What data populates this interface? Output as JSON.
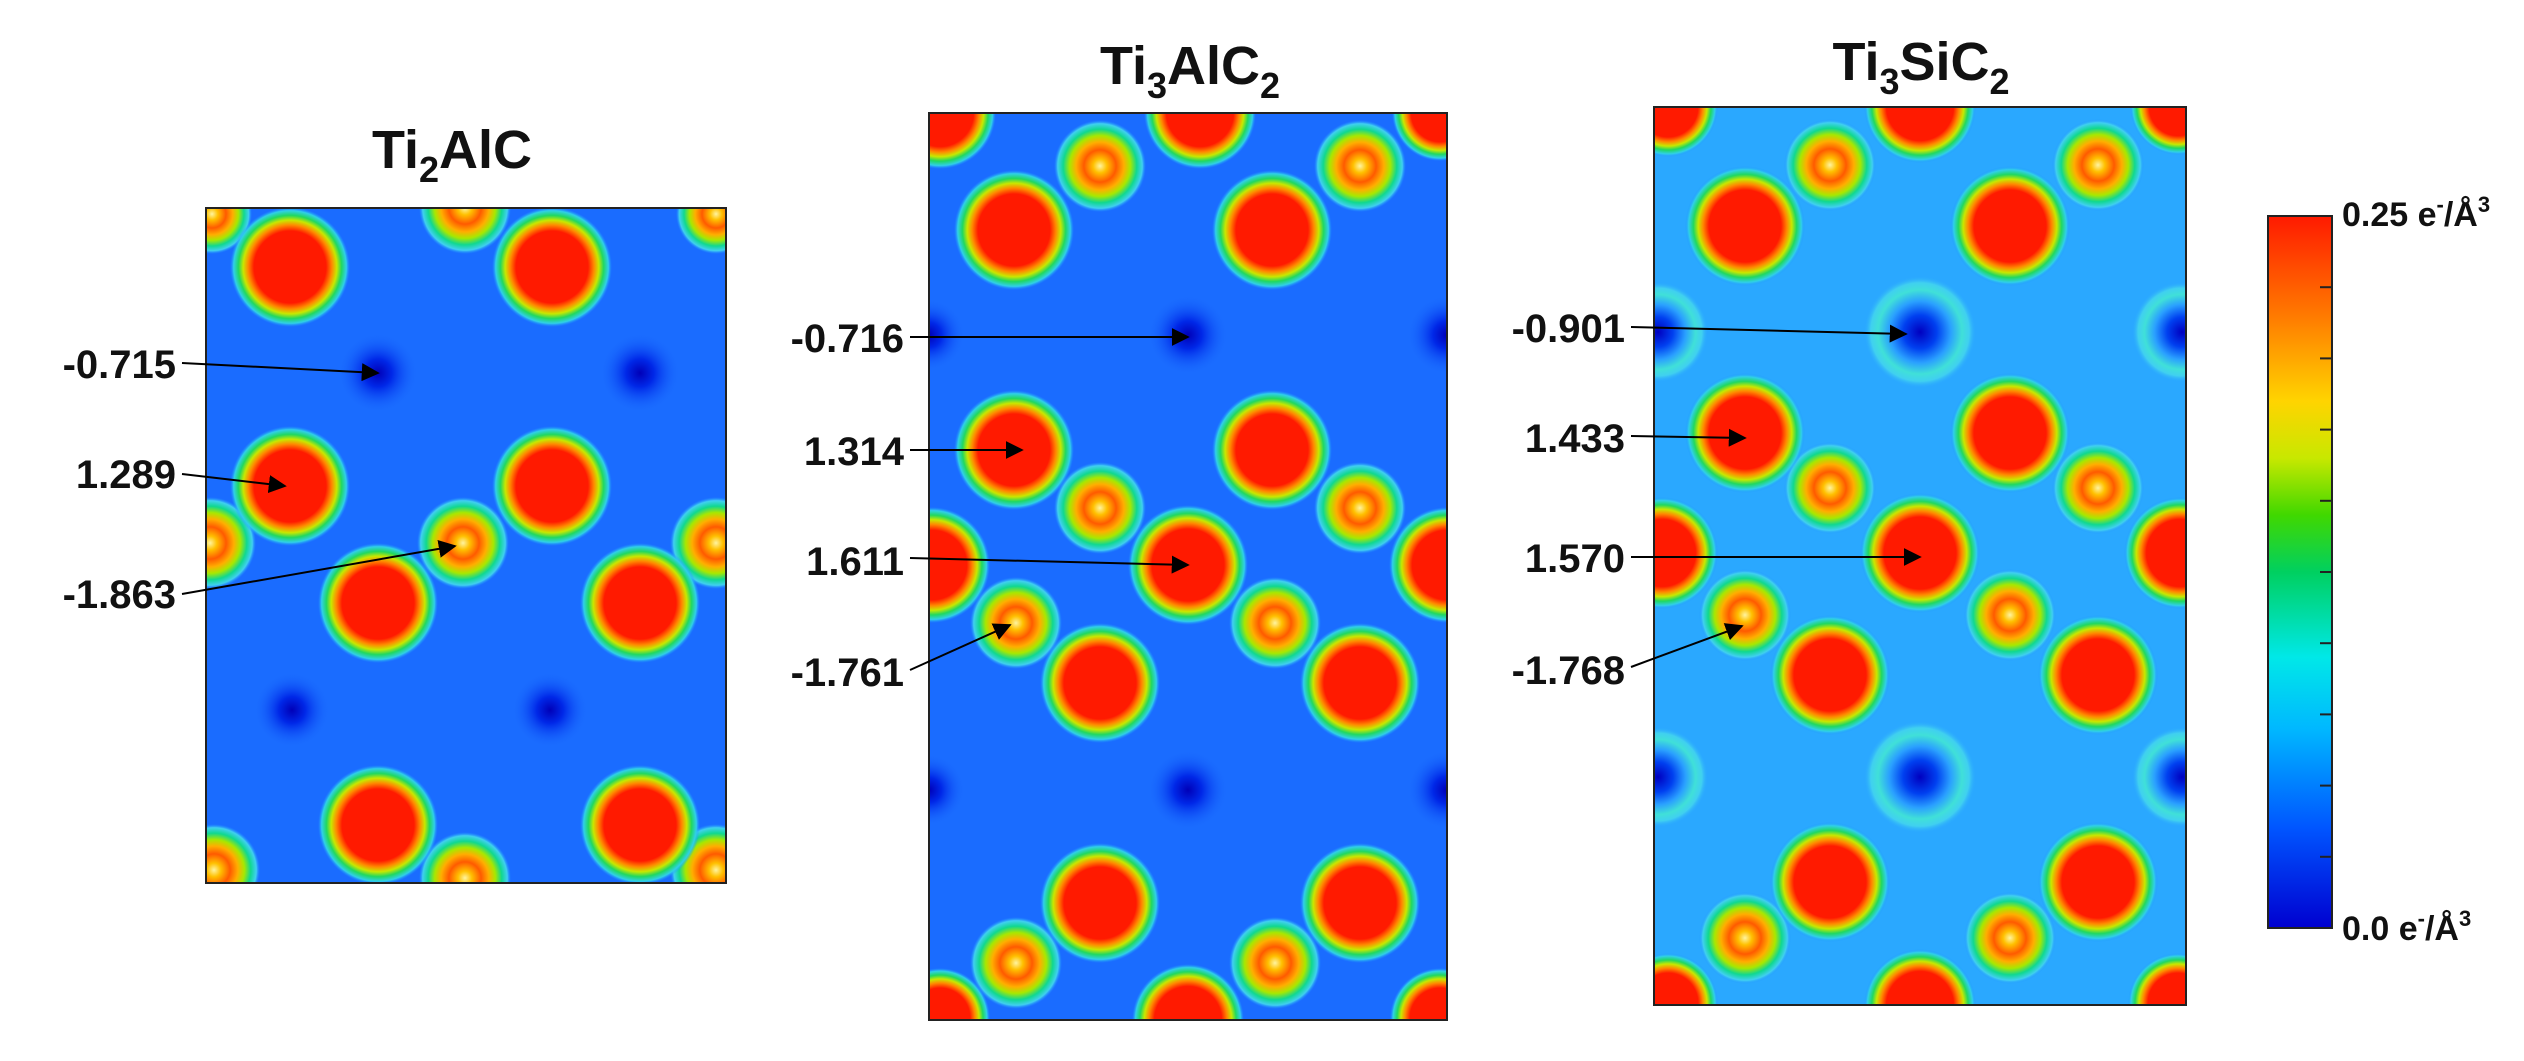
{
  "panels": [
    {
      "id": "ti2alc",
      "title": {
        "base1": "Ti",
        "sub1": "2",
        "base2": "AlC",
        "sub2": ""
      },
      "annotations": [
        "-0.715",
        "1.289",
        "-1.863"
      ]
    },
    {
      "id": "ti3alc2",
      "title": {
        "base1": "Ti",
        "sub1": "3",
        "base2": "AlC",
        "sub2": "2"
      },
      "annotations": [
        "-0.716",
        "1.314",
        "1.611",
        "-1.761"
      ]
    },
    {
      "id": "ti3sic2",
      "title": {
        "base1": "Ti",
        "sub1": "3",
        "base2": "SiC",
        "sub2": "2"
      },
      "annotations": [
        "-0.901",
        "1.433",
        "1.570",
        "-1.768"
      ]
    }
  ],
  "colorbar": {
    "max_label": {
      "value": "0.25 e",
      "sup": "-",
      "unit": "/Å",
      "sup2": "3"
    },
    "min_label": {
      "value": "0.0 e",
      "sup": "-",
      "unit": "/Å",
      "sup2": "3"
    },
    "colors": [
      "#0000d0",
      "#0055ff",
      "#00b8ff",
      "#00e8e8",
      "#00d060",
      "#40d800",
      "#c8e800",
      "#ffd400",
      "#ff7a00",
      "#ff1a00"
    ]
  }
}
